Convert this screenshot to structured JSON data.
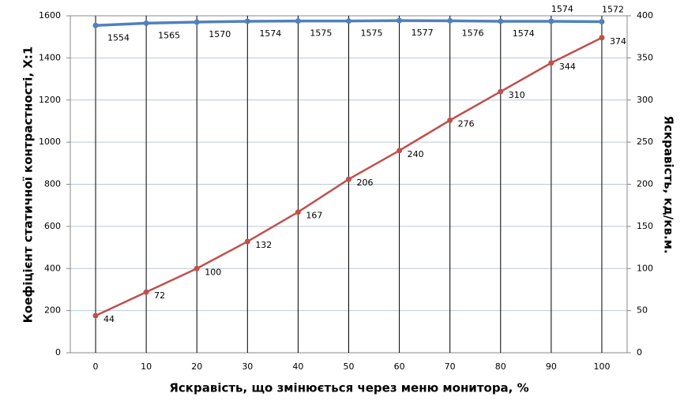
{
  "chart_data": {
    "type": "line",
    "x_label": "Яскравість, що змінюється через меню монитора, %",
    "y_label": "Коефіцієнт статичної контрастності, X:1",
    "y2_label": "Яскравість, кд/кв.м.",
    "x": [
      0,
      10,
      20,
      30,
      40,
      50,
      60,
      70,
      80,
      90,
      100
    ],
    "xlim": [
      -5,
      105
    ],
    "xticks": [
      0,
      10,
      20,
      30,
      40,
      50,
      60,
      70,
      80,
      90,
      100
    ],
    "ylim": [
      0,
      1600
    ],
    "yticks": [
      0,
      200,
      400,
      600,
      800,
      1000,
      1200,
      1400,
      1600
    ],
    "y2lim": [
      0,
      400
    ],
    "y2ticks": [
      0,
      50,
      100,
      150,
      200,
      250,
      300,
      350,
      400
    ],
    "grid": true,
    "series": [
      {
        "color": "#4f81bd",
        "values": [
          1554,
          1565,
          1570,
          1574,
          1575,
          1575,
          1577,
          1576,
          1574,
          1574,
          1572
        ]
      },
      {
        "color": "#c0504d",
        "axis": "y2",
        "values": [
          44,
          72,
          100,
          132,
          167,
          206,
          240,
          276,
          310,
          344,
          374
        ]
      }
    ]
  }
}
